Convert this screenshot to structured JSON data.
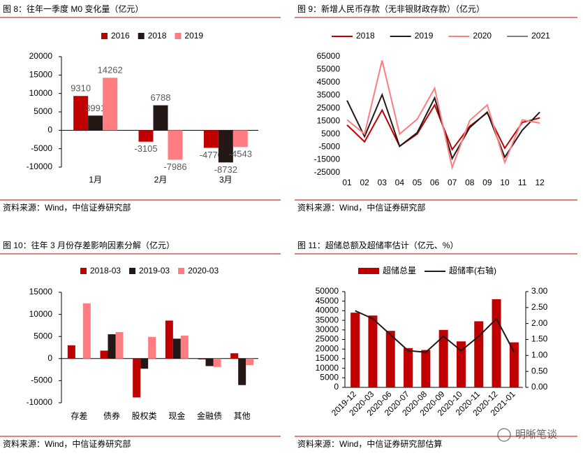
{
  "chart_data": [
    {
      "type": "bar",
      "title": "图 8：往年一季度 M0 变化量（亿元）",
      "source": "资料来源：Wind，中信证券研究部",
      "categories": [
        "1月",
        "2月",
        "3月"
      ],
      "series": [
        {
          "name": "2016",
          "color": "#c00000",
          "values": [
            9310,
            -3105,
            -4770
          ]
        },
        {
          "name": "2018",
          "color": "#231815",
          "values": [
            3991,
            6788,
            -8732
          ]
        },
        {
          "name": "2019",
          "color": "#ff7c80",
          "values": [
            14262,
            -7986,
            -4543
          ]
        }
      ],
      "ylim": [
        -10000,
        20000
      ],
      "yticks": [
        -10000,
        -5000,
        0,
        5000,
        10000,
        15000,
        20000
      ],
      "data_labels": true,
      "legend": "top"
    },
    {
      "type": "line",
      "title": "图 9：新增人民币存款（无非银财政存款）（亿元）",
      "source": "资料来源：Wind，中信证券研究部",
      "categories": [
        "01",
        "02",
        "03",
        "04",
        "05",
        "06",
        "07",
        "08",
        "09",
        "10",
        "11",
        "12"
      ],
      "series": [
        {
          "name": "2018",
          "color": "#c00000",
          "values": [
            12000,
            -1000,
            23500,
            -4500,
            5000,
            27500,
            -7000,
            11000,
            21500,
            -6000,
            14000,
            17500
          ]
        },
        {
          "name": "2019",
          "color": "#231815",
          "values": [
            31000,
            3000,
            35500,
            -4500,
            6000,
            33000,
            -14000,
            10000,
            22000,
            -13000,
            8000,
            22000
          ]
        },
        {
          "name": "2020",
          "color": "#ff7c80",
          "values": [
            16000,
            5000,
            62000,
            5000,
            16500,
            40500,
            -21000,
            15500,
            27500,
            -17000,
            16000,
            13500
          ]
        },
        {
          "name": "2021",
          "color": "#7f7f7f",
          "values": [
            null,
            null,
            null,
            null,
            null,
            null,
            null,
            null,
            null,
            null,
            null,
            null
          ]
        }
      ],
      "ylim": [
        -25000,
        65000
      ],
      "yticks": [
        -25000,
        -15000,
        -5000,
        5000,
        15000,
        25000,
        35000,
        45000,
        55000,
        65000
      ],
      "legend": "top"
    },
    {
      "type": "bar",
      "title": "图 10：往年 3 月份存差影响因素分解（亿元）",
      "source": "资料来源：Wind，中信证券研究部",
      "categories": [
        "存差",
        "债券",
        "股权类",
        "现金",
        "金融债",
        "其他"
      ],
      "series": [
        {
          "name": "2018-03",
          "color": "#c00000",
          "values": [
            3000,
            1800,
            -8800,
            8600,
            -200,
            1200
          ]
        },
        {
          "name": "2019-03",
          "color": "#231815",
          "values": [
            null,
            5500,
            -2300,
            4500,
            -1700,
            -6000
          ]
        },
        {
          "name": "2020-03",
          "color": "#ff7c80",
          "values": [
            12500,
            6000,
            4900,
            5200,
            -1900,
            -1500
          ]
        }
      ],
      "ylim": [
        -10000,
        15000
      ],
      "yticks": [
        -10000,
        -5000,
        0,
        5000,
        10000,
        15000
      ],
      "legend": "top"
    },
    {
      "type": "bar",
      "title": "图 11：超储总额及超储率估计（亿元、%）",
      "source": "资料来源：Wind，中信证券研究部估算",
      "categories": [
        "2019-12",
        "2020-03",
        "2020-06",
        "2020-07",
        "2020-08",
        "2020-09",
        "2020-10",
        "2020-11",
        "2020-12",
        "2021-01"
      ],
      "series": [
        {
          "name": "超储总量",
          "type": "bar",
          "color": "#c00000",
          "values": [
            39000,
            37500,
            29500,
            20500,
            19500,
            30000,
            24000,
            34500,
            46000,
            23500
          ]
        },
        {
          "name": "超储率(右轴)",
          "type": "line",
          "axis": "y2",
          "color": "#231815",
          "values": [
            2.4,
            2.15,
            1.65,
            1.15,
            1.1,
            1.6,
            1.15,
            1.6,
            2.15,
            1.1
          ]
        }
      ],
      "ylim": [
        0,
        50000
      ],
      "yticks": [
        0,
        5000,
        10000,
        15000,
        20000,
        25000,
        30000,
        35000,
        40000,
        45000,
        50000
      ],
      "y2lim": [
        0,
        3
      ],
      "y2ticks": [
        {
          "value": 0,
          "label": "0.00"
        },
        {
          "value": 0.5,
          "label": "0.50"
        },
        {
          "value": 1,
          "label": "1.00"
        },
        {
          "value": 1.5,
          "label": "1.50"
        },
        {
          "value": 2,
          "label": "2.00"
        },
        {
          "value": 2.5,
          "label": "2.50"
        },
        {
          "value": 3,
          "label": "3.00"
        }
      ],
      "legend": "top"
    }
  ],
  "watermark": "明晰笔谈"
}
